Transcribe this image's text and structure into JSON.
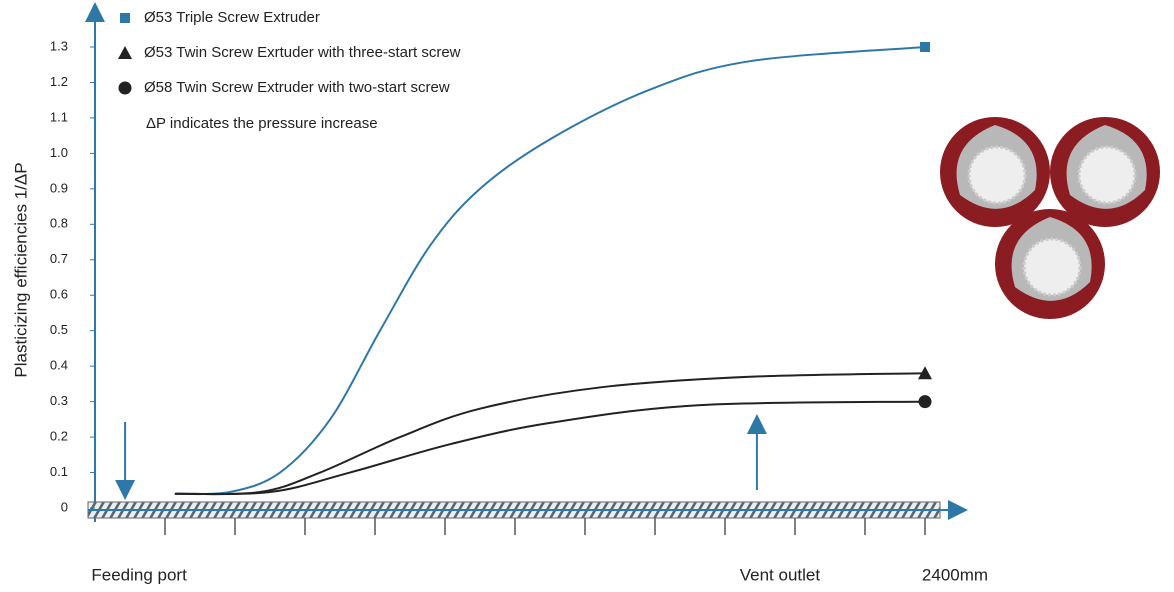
{
  "chart_data": {
    "type": "line",
    "y_label": "Plasticizing efficiencies 1/ΔP",
    "annotation": "ΔP  indicates the pressure increase",
    "legend": "upper left",
    "ylim": [
      0,
      1.3
    ],
    "yticks": [
      0,
      0.1,
      0.2,
      0.3,
      0.4,
      0.5,
      0.6,
      0.7,
      0.8,
      0.9,
      {
        "value": 1,
        "label": "1.0"
      },
      1.1,
      1.2,
      1.3
    ],
    "xlim": [
      -20,
      2490
    ],
    "xticks": [
      {
        "value": 87,
        "label": "Feeding port"
      },
      {
        "value": 1914,
        "label": "Vent outlet"
      },
      {
        "value": 2400,
        "label": "2400mm"
      }
    ],
    "series": [
      {
        "name": "Ø53 Triple Screw Extruder",
        "color": "#2e78a8",
        "marker": "square",
        "x": [
          231,
          390,
          535,
          680,
          824,
          969,
          1113,
          1316,
          1605,
          1894,
          2400
        ],
        "values": [
          0.04,
          0.045,
          0.1,
          0.25,
          0.5,
          0.74,
          0.9,
          1.04,
          1.18,
          1.26,
          1.3
        ]
      },
      {
        "name": "Ø53 Twin Screw Exrtuder with three-start screw",
        "color": "#222222",
        "marker": "triangle",
        "x": [
          231,
          477,
          651,
          882,
          1113,
          1460,
          1894,
          2400
        ],
        "values": [
          0.04,
          0.045,
          0.1,
          0.2,
          0.28,
          0.34,
          0.37,
          0.38
        ]
      },
      {
        "name": "Ø58 Twin Screw Extruder with two-start screw",
        "color": "#222222",
        "marker": "circle",
        "x": [
          231,
          506,
          737,
          1027,
          1316,
          1750,
          2400
        ],
        "values": [
          0.04,
          0.045,
          0.1,
          0.18,
          0.24,
          0.29,
          0.3
        ]
      }
    ]
  }
}
